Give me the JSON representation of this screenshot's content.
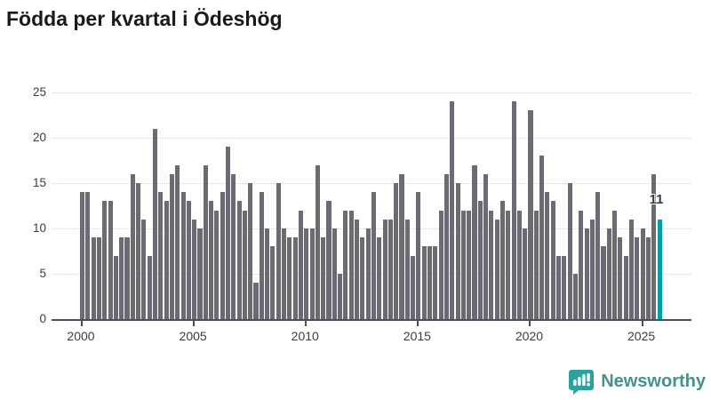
{
  "title": "Födda per kvartal i Ödeshög",
  "chart_data": {
    "type": "bar",
    "title": "Födda per kvartal i Ödeshög",
    "x_unit": "quarter",
    "x_start": "2000Q1",
    "x_end": "2025Q4",
    "values": [
      14,
      14,
      9,
      9,
      13,
      13,
      7,
      9,
      9,
      16,
      15,
      11,
      7,
      21,
      14,
      13,
      16,
      17,
      14,
      13,
      11,
      10,
      17,
      13,
      12,
      14,
      19,
      16,
      13,
      12,
      15,
      4,
      14,
      10,
      8,
      15,
      10,
      9,
      9,
      12,
      10,
      10,
      17,
      9,
      13,
      10,
      5,
      12,
      12,
      11,
      9,
      10,
      14,
      9,
      11,
      11,
      15,
      16,
      11,
      7,
      14,
      8,
      8,
      8,
      12,
      16,
      24,
      15,
      12,
      12,
      17,
      13,
      16,
      12,
      11,
      13,
      12,
      24,
      12,
      10,
      23,
      12,
      18,
      14,
      13,
      7,
      7,
      15,
      5,
      12,
      10,
      11,
      14,
      8,
      10,
      12,
      9,
      7,
      11,
      9,
      10,
      9,
      16,
      11
    ],
    "ylim": [
      0,
      25
    ],
    "yticks": [
      0,
      5,
      10,
      15,
      20,
      25
    ],
    "xtick_labels": [
      "2000",
      "2005",
      "2010",
      "2015",
      "2020",
      "2025"
    ],
    "grid": "horizontal",
    "bar_color": "#6b6b73",
    "highlight_color": "#00a0a4",
    "highlight_index_from_end": 1,
    "annotation": {
      "label": "11",
      "value": 11
    }
  },
  "footer": {
    "brand": "Newsworthy",
    "logo_icon": "bar-chart-speech-bubble-icon",
    "brand_color": "#47918c",
    "icon_color": "#2ba39c"
  }
}
